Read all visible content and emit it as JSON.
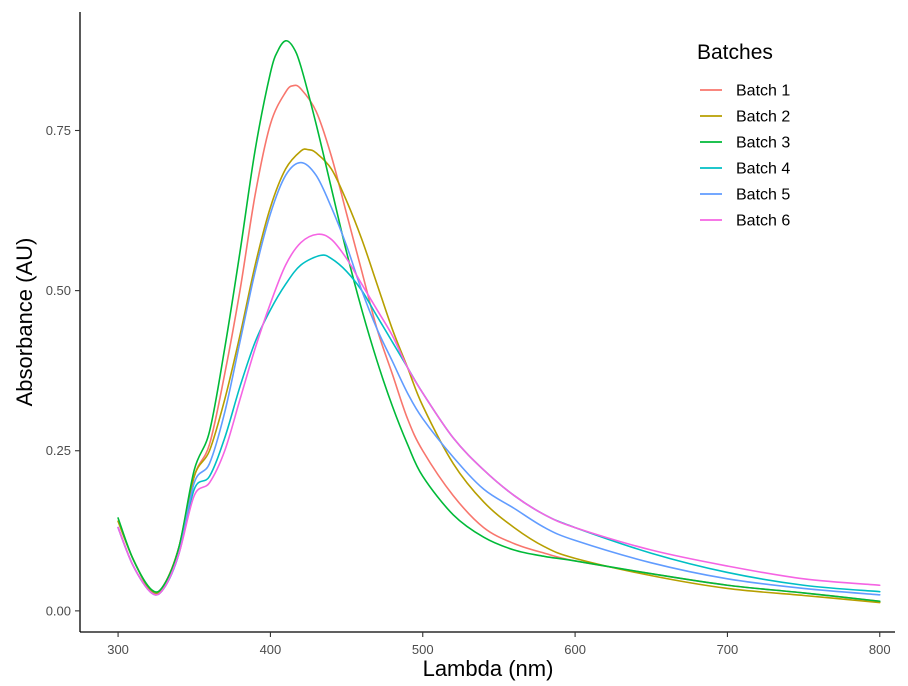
{
  "chart_data": {
    "type": "line",
    "xlabel": "Lambda (nm)",
    "ylabel": "Absorbance (AU)",
    "xlim": [
      275,
      810
    ],
    "ylim": [
      -0.033,
      0.935
    ],
    "x_ticks": [
      {
        "value": 300,
        "label": "300"
      },
      {
        "value": 400,
        "label": "400"
      },
      {
        "value": 500,
        "label": "500"
      },
      {
        "value": 600,
        "label": "600"
      },
      {
        "value": 700,
        "label": "700"
      },
      {
        "value": 800,
        "label": "800"
      }
    ],
    "y_ticks": [
      {
        "value": 0.0,
        "label": "0.00"
      },
      {
        "value": 0.25,
        "label": "0.25"
      },
      {
        "value": 0.5,
        "label": "0.50"
      },
      {
        "value": 0.75,
        "label": "0.75"
      }
    ],
    "grid": false,
    "legend": {
      "title": "Batches",
      "position": "top-right"
    },
    "series": [
      {
        "name": "Batch 1",
        "color": "#F8766D",
        "x": [
          300,
          310,
          322,
          330,
          340,
          350,
          360,
          370,
          380,
          390,
          400,
          410,
          415,
          420,
          430,
          440,
          450,
          460,
          470,
          480,
          490,
          500,
          520,
          540,
          560,
          580,
          600,
          650,
          700,
          750,
          800
        ],
        "y": [
          0.14,
          0.08,
          0.03,
          0.04,
          0.1,
          0.21,
          0.26,
          0.37,
          0.5,
          0.65,
          0.76,
          0.81,
          0.82,
          0.815,
          0.78,
          0.71,
          0.62,
          0.53,
          0.44,
          0.37,
          0.3,
          0.25,
          0.18,
          0.13,
          0.105,
          0.09,
          0.078,
          0.058,
          0.04,
          0.028,
          0.015
        ]
      },
      {
        "name": "Batch 2",
        "color": "#B79F00",
        "x": [
          300,
          310,
          322,
          330,
          340,
          350,
          360,
          370,
          380,
          390,
          400,
          410,
          420,
          425,
          430,
          440,
          450,
          460,
          470,
          480,
          490,
          500,
          520,
          540,
          560,
          580,
          600,
          650,
          700,
          750,
          800
        ],
        "y": [
          0.14,
          0.08,
          0.03,
          0.04,
          0.1,
          0.21,
          0.25,
          0.33,
          0.43,
          0.54,
          0.63,
          0.69,
          0.718,
          0.72,
          0.715,
          0.69,
          0.64,
          0.58,
          0.51,
          0.44,
          0.38,
          0.32,
          0.23,
          0.17,
          0.13,
          0.1,
          0.082,
          0.055,
          0.035,
          0.024,
          0.013
        ]
      },
      {
        "name": "Batch 3",
        "color": "#00BA38",
        "x": [
          300,
          310,
          322,
          330,
          340,
          350,
          360,
          370,
          380,
          390,
          400,
          405,
          410,
          415,
          420,
          430,
          440,
          450,
          460,
          470,
          480,
          490,
          500,
          520,
          540,
          560,
          580,
          600,
          650,
          700,
          750,
          800
        ],
        "y": [
          0.145,
          0.08,
          0.033,
          0.04,
          0.1,
          0.22,
          0.28,
          0.41,
          0.56,
          0.72,
          0.84,
          0.875,
          0.89,
          0.88,
          0.85,
          0.76,
          0.66,
          0.56,
          0.47,
          0.39,
          0.32,
          0.26,
          0.21,
          0.15,
          0.115,
          0.095,
          0.085,
          0.078,
          0.058,
          0.04,
          0.028,
          0.015
        ]
      },
      {
        "name": "Batch 4",
        "color": "#00BFC4",
        "x": [
          300,
          310,
          322,
          330,
          340,
          350,
          360,
          370,
          380,
          390,
          400,
          410,
          420,
          433,
          440,
          450,
          460,
          470,
          480,
          490,
          500,
          520,
          540,
          560,
          580,
          600,
          650,
          700,
          750,
          800
        ],
        "y": [
          0.13,
          0.07,
          0.028,
          0.035,
          0.09,
          0.19,
          0.21,
          0.27,
          0.35,
          0.42,
          0.47,
          0.51,
          0.54,
          0.555,
          0.55,
          0.53,
          0.5,
          0.46,
          0.42,
          0.38,
          0.34,
          0.27,
          0.22,
          0.18,
          0.15,
          0.13,
          0.09,
          0.06,
          0.04,
          0.03
        ]
      },
      {
        "name": "Batch 5",
        "color": "#619CFF",
        "x": [
          300,
          310,
          322,
          330,
          340,
          350,
          360,
          370,
          380,
          390,
          400,
          410,
          420,
          430,
          440,
          450,
          460,
          470,
          480,
          490,
          500,
          520,
          540,
          560,
          580,
          600,
          650,
          700,
          750,
          800
        ],
        "y": [
          0.13,
          0.07,
          0.028,
          0.035,
          0.09,
          0.2,
          0.23,
          0.31,
          0.42,
          0.53,
          0.62,
          0.68,
          0.7,
          0.68,
          0.63,
          0.57,
          0.5,
          0.44,
          0.39,
          0.34,
          0.3,
          0.24,
          0.19,
          0.16,
          0.13,
          0.11,
          0.075,
          0.05,
          0.035,
          0.025
        ]
      },
      {
        "name": "Batch 6",
        "color": "#F564E3",
        "x": [
          300,
          310,
          322,
          330,
          340,
          350,
          360,
          370,
          380,
          390,
          400,
          410,
          420,
          431,
          440,
          450,
          460,
          470,
          480,
          490,
          500,
          520,
          540,
          560,
          580,
          600,
          650,
          700,
          750,
          800
        ],
        "y": [
          0.13,
          0.07,
          0.028,
          0.035,
          0.09,
          0.18,
          0.2,
          0.25,
          0.33,
          0.41,
          0.48,
          0.54,
          0.575,
          0.588,
          0.58,
          0.55,
          0.51,
          0.47,
          0.43,
          0.38,
          0.34,
          0.27,
          0.22,
          0.18,
          0.15,
          0.13,
          0.095,
          0.07,
          0.05,
          0.04
        ]
      }
    ]
  }
}
